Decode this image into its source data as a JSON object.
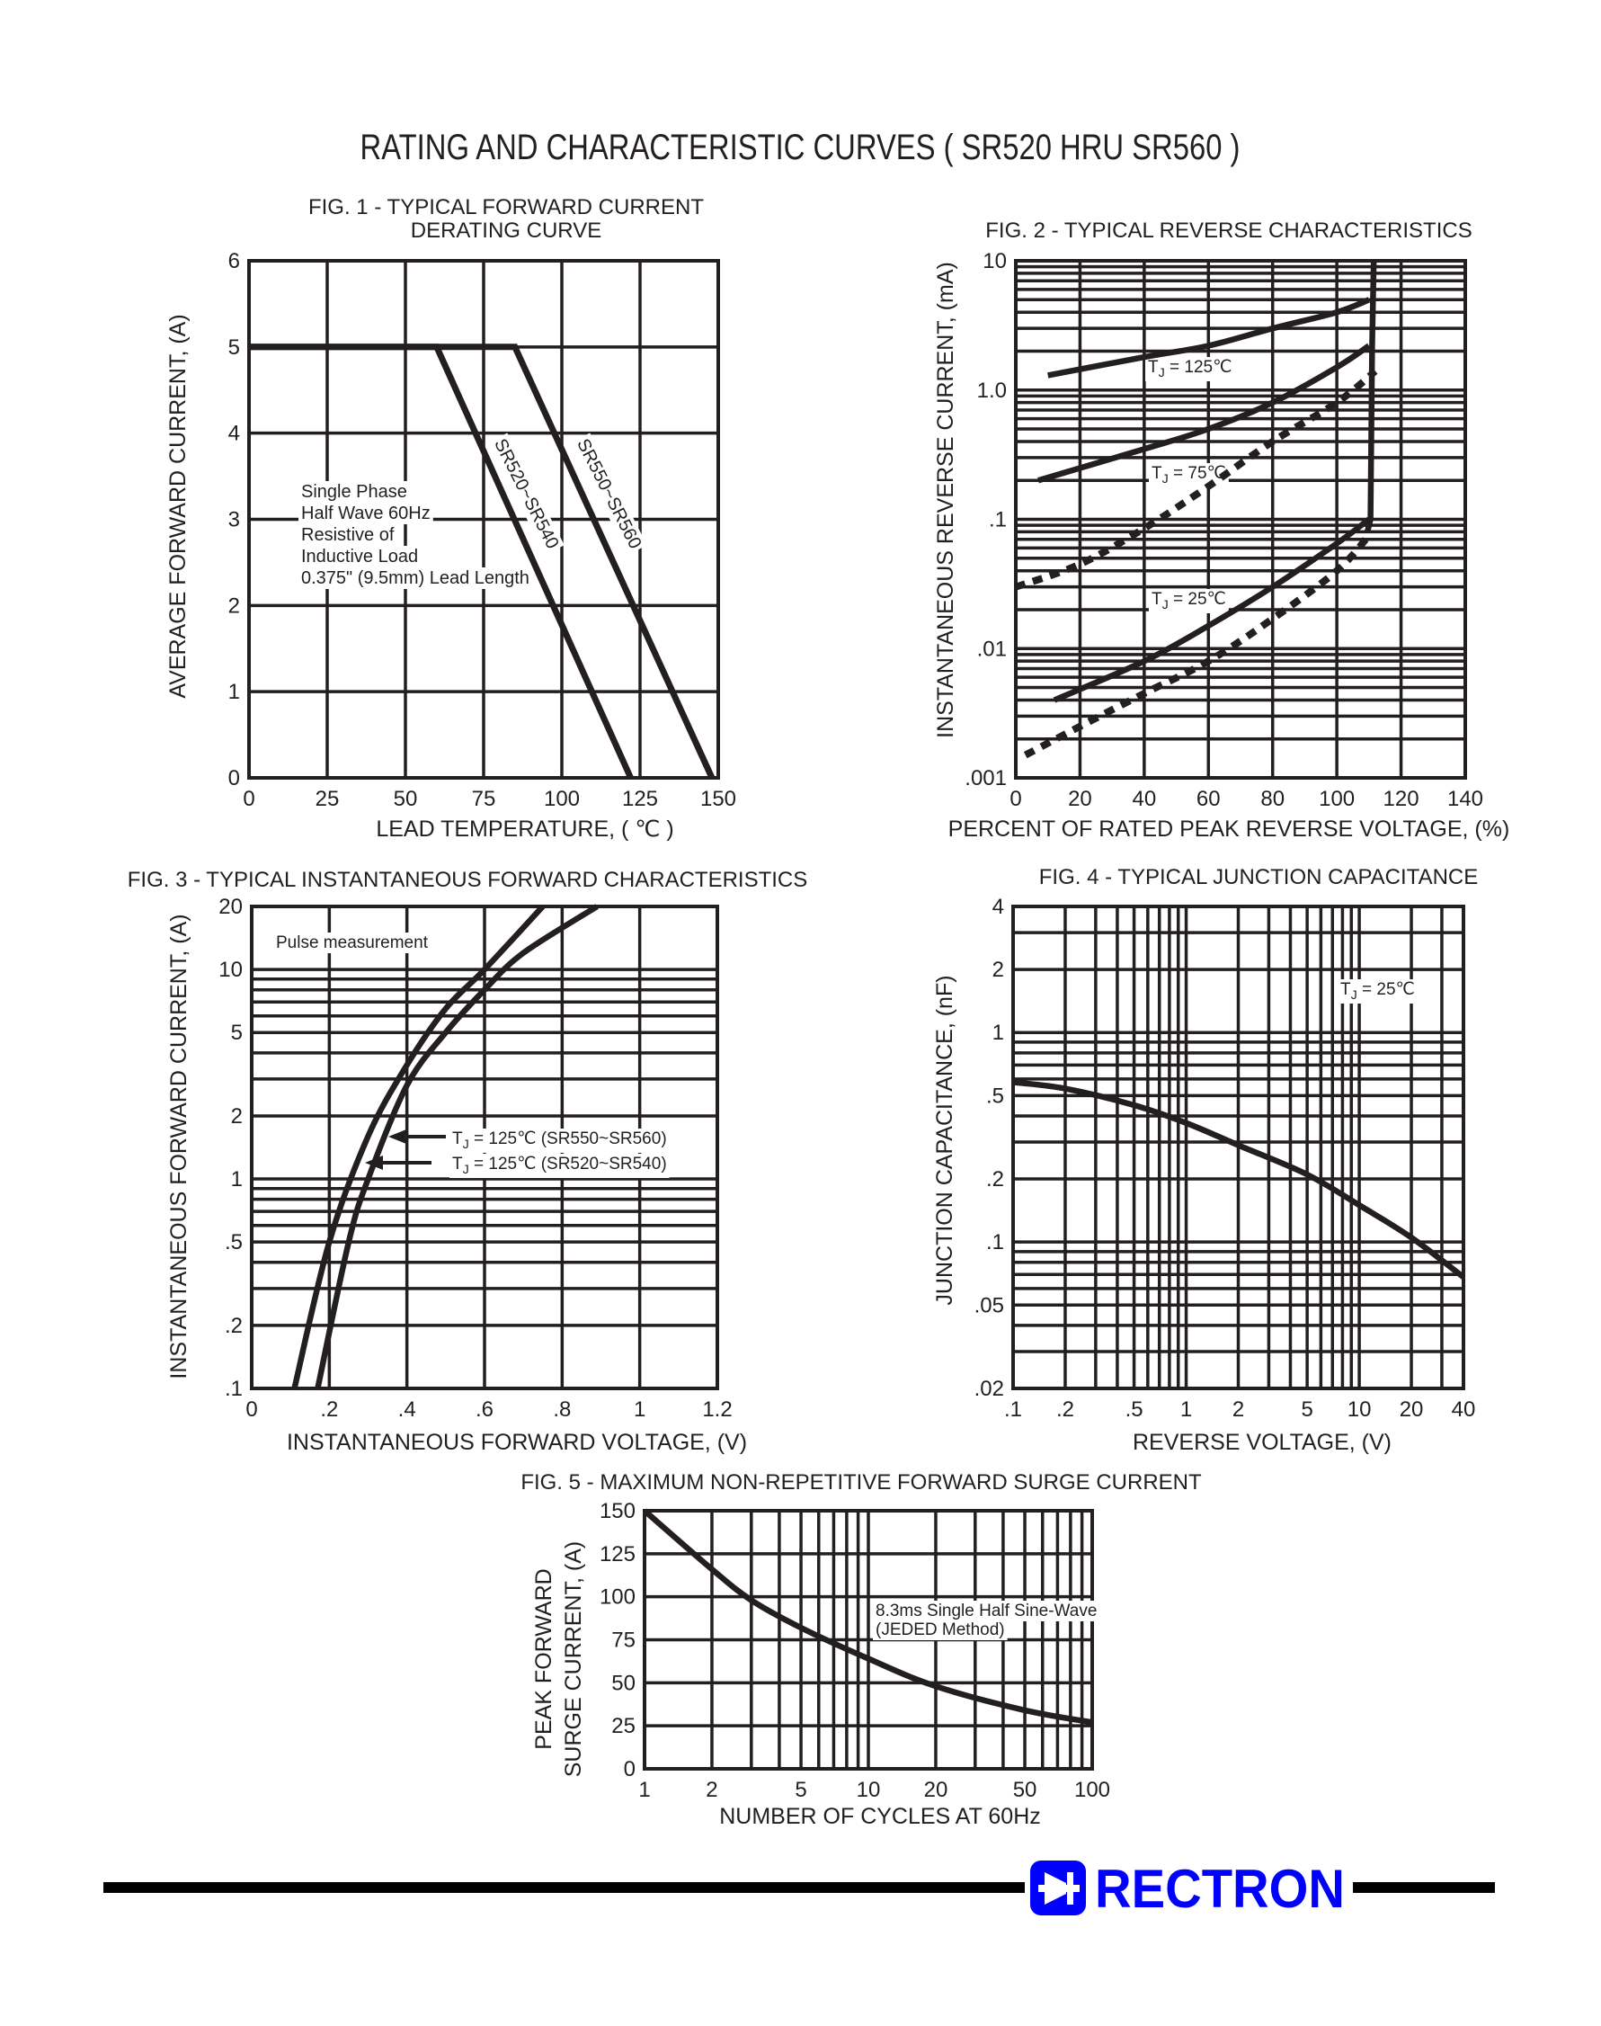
{
  "page_title": "RATING AND CHARACTERISTIC CURVES ( SR520 HRU SR560 )",
  "brand": {
    "name": "RECTRON",
    "color": "#0000ff",
    "icon": "diode-logo-icon"
  },
  "chart_data": [
    {
      "type": "line",
      "title": [
        "FIG. 1 - TYPICAL FORWARD CURRENT",
        "DERATING CURVE"
      ],
      "xlabel": "LEAD TEMPERATURE, ( ℃ )",
      "ylabel": "AVERAGE FORWARD CURRENT, (A)",
      "xscale": "linear",
      "yscale": "linear",
      "xlim": [
        0,
        150
      ],
      "ylim": [
        0,
        6
      ],
      "grid": true,
      "xticks": {
        "values": [
          0,
          25,
          50,
          75,
          100,
          125,
          150
        ],
        "labels": [
          "0",
          "25",
          "50",
          "75",
          "100",
          "125",
          "150"
        ]
      },
      "yticks": {
        "values": [
          0,
          1,
          2,
          3,
          4,
          5,
          6
        ],
        "labels": [
          "0",
          "1",
          "2",
          "3",
          "4",
          "5",
          "6"
        ]
      },
      "series": [
        {
          "name": "SR520~SR540",
          "style": "solid",
          "x": [
            0,
            60,
            122
          ],
          "y": [
            5,
            5,
            0
          ]
        },
        {
          "name": "SR550~SR560",
          "style": "solid",
          "x": [
            0,
            85,
            148
          ],
          "y": [
            5,
            5,
            0
          ]
        }
      ],
      "annotations": [
        "Single Phase",
        "Half Wave 60Hz",
        "Resistive of",
        "Inductive Load",
        "0.375\" (9.5mm) Lead Length"
      ]
    },
    {
      "type": "line",
      "title": [
        "FIG. 2 - TYPICAL REVERSE CHARACTERISTICS"
      ],
      "xlabel": "PERCENT OF RATED PEAK REVERSE VOLTAGE, (%)",
      "ylabel": "INSTANTANEOUS REVERSE CURRENT, (mA)",
      "xscale": "linear",
      "yscale": "log",
      "xlim": [
        0,
        140
      ],
      "ylim": [
        0.001,
        10
      ],
      "grid": true,
      "xticks": {
        "values": [
          0,
          20,
          40,
          60,
          80,
          100,
          120,
          140
        ],
        "labels": [
          "0",
          "20",
          "40",
          "60",
          "80",
          "100",
          "120",
          "140"
        ]
      },
      "yticks": {
        "values": [
          10,
          1,
          0.1,
          0.01,
          0.001
        ],
        "labels": [
          "10",
          "1.0",
          ".1",
          ".01",
          ".001"
        ]
      },
      "series": [
        {
          "style": "solid",
          "x": [
            10,
            40,
            60,
            80,
            100,
            110
          ],
          "y": [
            1.3,
            1.8,
            2.2,
            3.0,
            4.0,
            5.0
          ]
        },
        {
          "style": "solid",
          "x": [
            7,
            40,
            60,
            80,
            100,
            110
          ],
          "y": [
            0.2,
            0.35,
            0.5,
            0.8,
            1.5,
            2.2
          ]
        },
        {
          "style": "dashed",
          "x": [
            0,
            20,
            40,
            60,
            80,
            100,
            112
          ],
          "y": [
            0.03,
            0.045,
            0.085,
            0.18,
            0.4,
            0.8,
            1.4
          ]
        },
        {
          "style": "solid",
          "x": [
            12,
            40,
            60,
            80,
            100,
            110
          ],
          "y": [
            0.004,
            0.008,
            0.015,
            0.03,
            0.065,
            0.1
          ]
        },
        {
          "style": "dashed",
          "x": [
            3,
            20,
            40,
            60,
            80,
            100,
            110
          ],
          "y": [
            0.0015,
            0.0025,
            0.0045,
            0.008,
            0.017,
            0.04,
            0.075
          ]
        },
        {
          "style": "solid-straight",
          "x": [
            109.5,
            110.5,
            111,
            111.5
          ],
          "y": [
            0.08,
            0.1,
            2.2,
            10
          ]
        }
      ],
      "annotations": [
        {
          "t": "T",
          "sub": "J",
          "rest": " = 125℃"
        },
        {
          "t": "T",
          "sub": "J",
          "rest": " = 75℃"
        },
        {
          "t": "T",
          "sub": "J",
          "rest": " = 25℃"
        }
      ]
    },
    {
      "type": "line",
      "title": [
        "FIG. 3 - TYPICAL INSTANTANEOUS FORWARD CHARACTERISTICS"
      ],
      "xlabel": "INSTANTANEOUS FORWARD VOLTAGE, (V)",
      "ylabel": "INSTANTANEOUS FORWARD CURRENT, (A)",
      "xscale": "linear",
      "yscale": "log",
      "xlim": [
        0,
        1.2
      ],
      "ylim": [
        0.1,
        20
      ],
      "grid": true,
      "xticks": {
        "values": [
          0,
          0.2,
          0.4,
          0.6,
          0.8,
          1.0,
          1.2
        ],
        "labels": [
          "0",
          ".2",
          ".4",
          ".6",
          ".8",
          "1",
          "1.2"
        ]
      },
      "yticks": {
        "values": [
          20,
          10,
          5,
          2,
          1,
          0.5,
          0.2,
          0.1
        ],
        "labels": [
          "20",
          "10",
          "5",
          "2",
          "1",
          ".5",
          ".2",
          ".1"
        ]
      },
      "series": [
        {
          "name": "TJ = 125℃ (SR550~SR560)",
          "style": "solid",
          "x": [
            0.11,
            0.2,
            0.3,
            0.4,
            0.5,
            0.6,
            0.75
          ],
          "y": [
            0.1,
            0.5,
            1.6,
            3.5,
            6.5,
            10,
            20
          ]
        },
        {
          "name": "TJ = 125℃ (SR520~SR540)",
          "style": "solid",
          "x": [
            0.17,
            0.25,
            0.3,
            0.4,
            0.5,
            0.6,
            0.7,
            0.89
          ],
          "y": [
            0.1,
            0.5,
            1.0,
            2.8,
            5,
            8,
            12,
            20
          ]
        }
      ],
      "annotations": [
        "Pulse measurement",
        {
          "t": "T",
          "sub": "J",
          "rest": " = 125℃ (SR550~SR560)"
        },
        {
          "t": "T",
          "sub": "J",
          "rest": " = 125℃ (SR520~SR540)"
        }
      ]
    },
    {
      "type": "line",
      "title": [
        "FIG. 4 - TYPICAL JUNCTION CAPACITANCE"
      ],
      "xlabel": "REVERSE VOLTAGE, (V)",
      "ylabel": "JUNCTION CAPACITANCE, (nF)",
      "xscale": "log",
      "yscale": "log",
      "xlim": [
        0.1,
        40
      ],
      "ylim": [
        0.02,
        4
      ],
      "grid": true,
      "xticks": {
        "values": [
          0.1,
          0.2,
          0.5,
          1,
          2,
          5,
          10,
          20,
          40
        ],
        "labels": [
          ".1",
          ".2",
          ".5",
          "1",
          "2",
          "5",
          "10",
          "20",
          "40"
        ]
      },
      "yticks": {
        "values": [
          4,
          2,
          1,
          0.5,
          0.2,
          0.1,
          0.05,
          0.02
        ],
        "labels": [
          "4",
          "2",
          "1",
          ".5",
          ".2",
          ".1",
          ".05",
          ".02"
        ]
      },
      "series": [
        {
          "style": "solid",
          "x": [
            0.1,
            0.2,
            0.5,
            1,
            2,
            5,
            10,
            20,
            40
          ],
          "y": [
            0.58,
            0.54,
            0.45,
            0.37,
            0.29,
            0.21,
            0.15,
            0.105,
            0.068
          ]
        }
      ],
      "annotations": [
        {
          "t": "T",
          "sub": "J",
          "rest": " = 25℃"
        }
      ]
    },
    {
      "type": "line",
      "title": [
        "FIG. 5 - MAXIMUM NON-REPETITIVE FORWARD SURGE CURRENT"
      ],
      "xlabel": "NUMBER OF CYCLES AT 60Hz",
      "ylabel": [
        "PEAK FORWARD",
        "SURGE CURRENT, (A)"
      ],
      "xscale": "log",
      "yscale": "linear",
      "xlim": [
        1,
        100
      ],
      "ylim": [
        0,
        150
      ],
      "grid": true,
      "xticks": {
        "values": [
          1,
          2,
          5,
          10,
          20,
          50,
          100
        ],
        "labels": [
          "1",
          "2",
          "5",
          "10",
          "20",
          "50",
          "100"
        ]
      },
      "yticks": {
        "values": [
          150,
          125,
          100,
          75,
          50,
          25,
          0
        ],
        "labels": [
          "150",
          "125",
          "100",
          "75",
          "50",
          "25",
          "0"
        ]
      },
      "series": [
        {
          "style": "solid",
          "x": [
            1,
            2,
            3,
            5,
            10,
            20,
            50,
            100
          ],
          "y": [
            150,
            116,
            98,
            82,
            64,
            48,
            34,
            27
          ]
        }
      ],
      "annotations": [
        "8.3ms Single Half Sine-Wave",
        "(JEDED Method)"
      ]
    }
  ]
}
